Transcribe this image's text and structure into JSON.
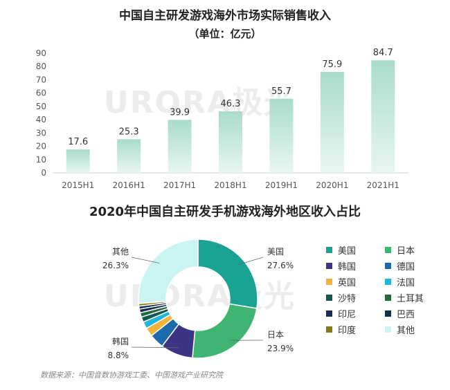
{
  "watermark": "URORA极光",
  "source": "数据来源：中国音数协游戏工委、中国游戏产业研究院",
  "chart_data": [
    {
      "type": "bar",
      "title": "中国自主研发游戏海外市场实际销售收入",
      "subtitle": "（单位：亿元）",
      "categories": [
        "2015H1",
        "2016H1",
        "2017H1",
        "2018H1",
        "2019H1",
        "2020H1",
        "2021H1"
      ],
      "values": [
        17.6,
        25.3,
        39.9,
        46.3,
        55.7,
        75.9,
        84.7
      ],
      "yticks": [
        0,
        10,
        20,
        30,
        40,
        50,
        60,
        70,
        80,
        90
      ],
      "ylim": [
        0,
        90
      ],
      "grid": false,
      "colors": {
        "bar_top": "#a9dcca",
        "bar_bottom": "#e8f6f1",
        "axis": "#cccccc",
        "text": "#555555"
      }
    },
    {
      "type": "pie",
      "title": "2020年中国自主研发手机游戏海外地区收入占比",
      "donut": true,
      "categories": [
        "美国",
        "日本",
        "韩国",
        "德国",
        "英国",
        "法国",
        "沙特",
        "土耳其",
        "印尼",
        "巴西",
        "印度",
        "其他"
      ],
      "values": [
        27.6,
        23.9,
        8.8,
        4.0,
        2.4,
        1.9,
        1.4,
        1.2,
        1.0,
        0.8,
        0.7,
        26.3
      ],
      "colors": [
        "#1aa292",
        "#3fb574",
        "#3b3483",
        "#1c6aad",
        "#f0b43a",
        "#21b6d9",
        "#15564f",
        "#226a3c",
        "#1a2b55",
        "#123147",
        "#8a7a12",
        "#c9f4f1"
      ],
      "labels": [
        {
          "name": "美国",
          "pct": "27.6%"
        },
        {
          "name": "日本",
          "pct": "23.9%"
        },
        {
          "name": "韩国",
          "pct": "8.8%"
        },
        {
          "name": "其他",
          "pct": "26.3%"
        }
      ],
      "legend": {
        "placement": "right",
        "items": [
          "美国",
          "日本",
          "韩国",
          "德国",
          "英国",
          "法国",
          "沙特",
          "土耳其",
          "印尼",
          "巴西",
          "印度",
          "其他"
        ]
      }
    }
  ]
}
